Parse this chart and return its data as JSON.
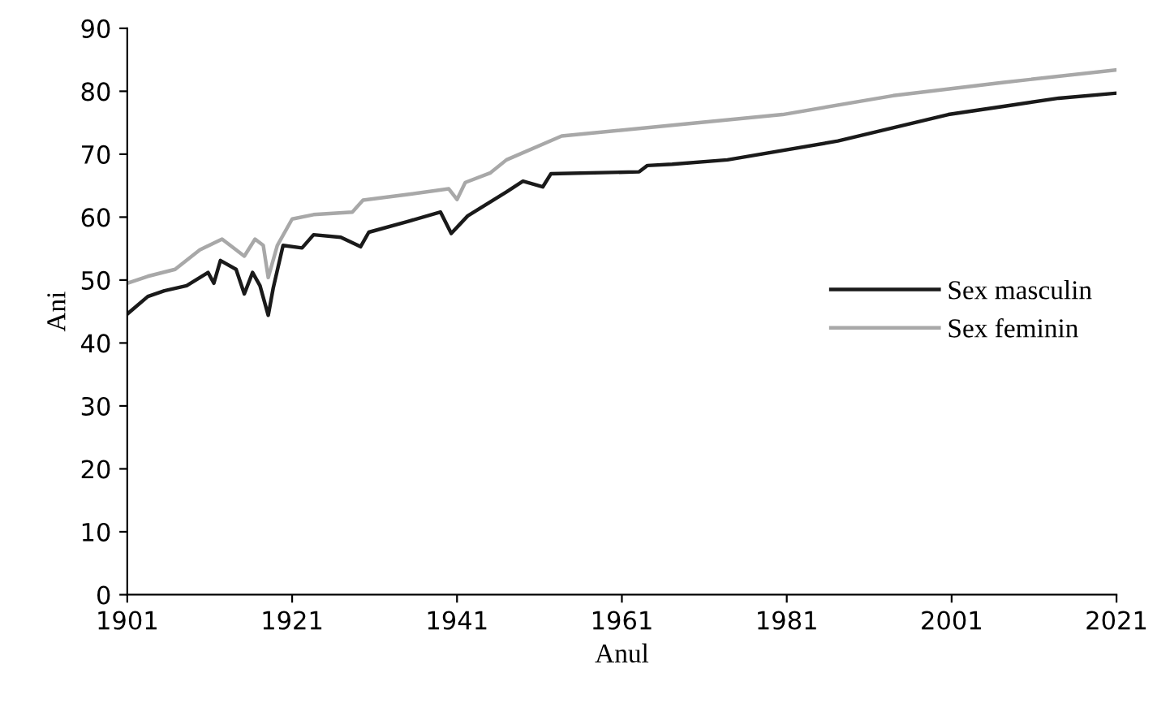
{
  "chart_data": {
    "type": "line",
    "xlabel": "Anul",
    "ylabel": "Ani",
    "xlim": [
      1901,
      2021
    ],
    "ylim": [
      0,
      90
    ],
    "xticks": [
      1901,
      1921,
      1941,
      1961,
      1981,
      2001,
      2021
    ],
    "yticks": [
      0,
      10,
      20,
      30,
      40,
      50,
      60,
      70,
      80,
      90
    ],
    "grid": false,
    "legend": "right",
    "marker": "none",
    "line_style": "solid",
    "series": [
      {
        "name": "Sex masculin",
        "color": "#1a1a1a",
        "x": [
          1901,
          1903.5,
          1905.5,
          1908.2,
          1910.8,
          1911.5,
          1912.3,
          1914.2,
          1915.2,
          1916.2,
          1917.1,
          1918.1,
          1918.7,
          1919.9,
          1922.2,
          1923.6,
          1926.9,
          1929.3,
          1930.3,
          1935,
          1939,
          1940.3,
          1942.3,
          1947,
          1949,
          1951.4,
          1952.4,
          1963.1,
          1964.1,
          1967.1,
          1973.8,
          1987.2,
          2000.6,
          2007.3,
          2014,
          2021
        ],
        "values": [
          44.6,
          47.4,
          48.3,
          49.1,
          51.2,
          49.5,
          53.1,
          51.7,
          47.8,
          51.2,
          49.1,
          44.4,
          48.7,
          55.5,
          55.1,
          57.2,
          56.8,
          55.3,
          57.6,
          59.3,
          60.8,
          57.4,
          60.2,
          64.0,
          65.7,
          64.8,
          66.9,
          67.2,
          68.2,
          68.4,
          69.1,
          72.1,
          76.3,
          77.6,
          78.9,
          79.7
        ]
      },
      {
        "name": "Sex feminin",
        "color": "#a8a8a8",
        "x": [
          1901,
          1903.5,
          1906.8,
          1909.8,
          1912.5,
          1915.2,
          1916.5,
          1917.5,
          1918.1,
          1919.2,
          1921,
          1923.6,
          1928.3,
          1929.6,
          1935,
          1940,
          1941,
          1942,
          1945,
          1947,
          1953.7,
          1967.1,
          1980.5,
          1993.9,
          2007.3,
          2021
        ],
        "values": [
          49.5,
          50.6,
          51.7,
          54.8,
          56.5,
          53.8,
          56.5,
          55.5,
          50.4,
          55.5,
          59.7,
          60.4,
          60.8,
          62.7,
          63.6,
          64.5,
          62.8,
          65.5,
          67.0,
          69.1,
          72.9,
          74.6,
          76.3,
          79.3,
          81.4,
          83.4
        ]
      }
    ]
  }
}
